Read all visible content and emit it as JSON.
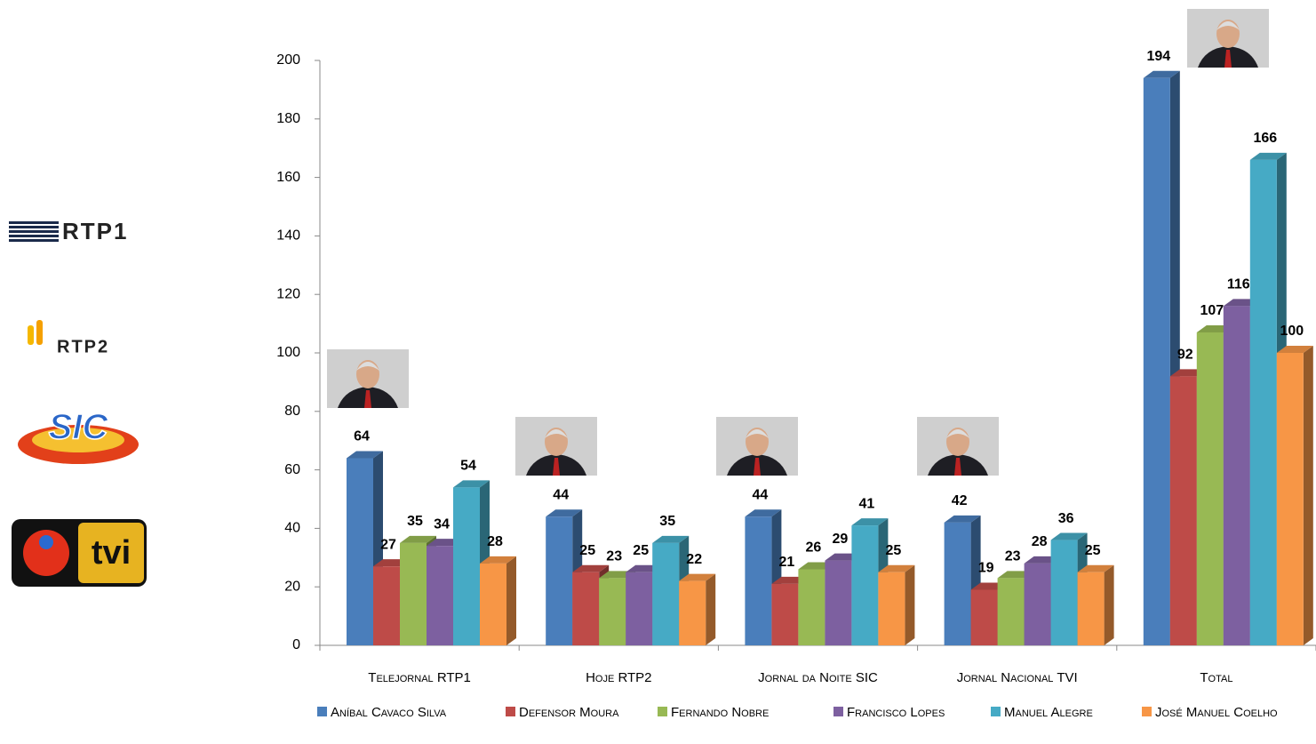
{
  "chart_data": {
    "type": "bar",
    "categories": [
      "Telejornal RTP1",
      "Hoje RTP2",
      "Jornal da Noite SIC",
      "Jornal Nacional TVI",
      "Total"
    ],
    "series": [
      {
        "name": "Aníbal Cavaco Silva",
        "color": "#4a7ebb",
        "values": [
          64,
          44,
          44,
          42,
          194
        ]
      },
      {
        "name": "Defensor Moura",
        "color": "#be4b48",
        "values": [
          27,
          25,
          21,
          19,
          92
        ]
      },
      {
        "name": "Fernando Nobre",
        "color": "#98b954",
        "values": [
          35,
          23,
          26,
          23,
          107
        ]
      },
      {
        "name": "Francisco Lopes",
        "color": "#7d60a0",
        "values": [
          34,
          25,
          29,
          28,
          116
        ]
      },
      {
        "name": "Manuel Alegre",
        "color": "#46aac5",
        "values": [
          54,
          35,
          41,
          36,
          166
        ]
      },
      {
        "name": "José Manuel Coelho",
        "color": "#f79646",
        "values": [
          28,
          22,
          25,
          25,
          100
        ]
      }
    ],
    "ylim": [
      0,
      200
    ],
    "yticks": [
      0,
      20,
      40,
      60,
      80,
      100,
      120,
      140,
      160,
      180,
      200
    ],
    "legend": "bottom",
    "logos": [
      "RTP1",
      "RTP2",
      "SIC",
      "tvi"
    ]
  }
}
